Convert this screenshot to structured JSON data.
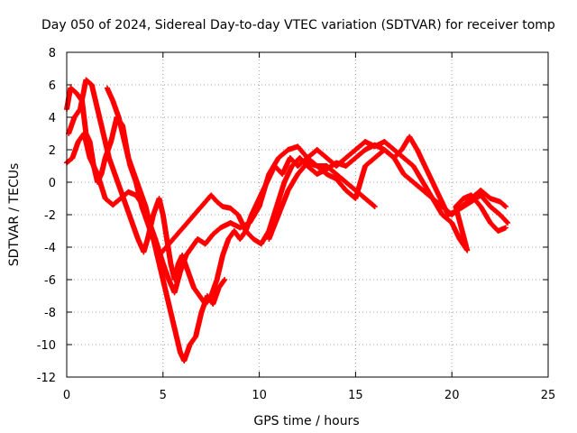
{
  "chart_data": {
    "type": "scatter",
    "title": "Day 050 of 2024, Sidereal Day-to-day VTEC variation (SDTVAR) for receiver tomp",
    "xlabel": "GPS time / hours",
    "ylabel": "SDTVAR / TECUs",
    "xlim": [
      0,
      25
    ],
    "ylim": [
      -12,
      8
    ],
    "xticks": [
      0,
      5,
      10,
      15,
      20,
      25
    ],
    "yticks": [
      -12,
      -10,
      -8,
      -6,
      -4,
      -2,
      0,
      2,
      4,
      6,
      8
    ],
    "grid": true,
    "marker": "+",
    "color": "#ff0000",
    "series": [
      {
        "points": [
          [
            0.0,
            1.2
          ],
          [
            0.3,
            1.5
          ],
          [
            0.6,
            2.5
          ],
          [
            0.9,
            3.0
          ],
          [
            1.2,
            1.5
          ],
          [
            1.6,
            0.5
          ],
          [
            2.0,
            -1.0
          ],
          [
            2.4,
            -1.4
          ],
          [
            2.8,
            -1.0
          ],
          [
            3.2,
            -0.6
          ],
          [
            3.6,
            -0.8
          ],
          [
            4.0,
            -1.5
          ],
          [
            4.3,
            -2.5
          ],
          [
            4.6,
            -3.5
          ],
          [
            5.0,
            -5.0
          ],
          [
            5.3,
            -6.0
          ],
          [
            5.6,
            -6.8
          ],
          [
            5.9,
            -5.5
          ],
          [
            6.2,
            -4.5
          ],
          [
            6.5,
            -4.0
          ],
          [
            6.8,
            -3.5
          ],
          [
            7.2,
            -3.8
          ],
          [
            7.6,
            -3.2
          ],
          [
            8.0,
            -2.8
          ],
          [
            8.5,
            -2.5
          ],
          [
            9.0,
            -2.8
          ],
          [
            9.5,
            -2.5
          ],
          [
            10.0,
            -1.5
          ],
          [
            10.5,
            0.5
          ],
          [
            11.0,
            1.5
          ],
          [
            11.5,
            2.0
          ],
          [
            12.0,
            2.2
          ],
          [
            12.5,
            1.5
          ],
          [
            13.0,
            1.0
          ],
          [
            13.5,
            1.0
          ],
          [
            14.0,
            0.5
          ],
          [
            14.5,
            0.0
          ],
          [
            15.0,
            -0.5
          ],
          [
            15.5,
            -1.0
          ],
          [
            16.0,
            -1.5
          ]
        ]
      },
      {
        "points": [
          [
            0.0,
            4.5
          ],
          [
            0.2,
            5.8
          ],
          [
            0.5,
            5.5
          ],
          [
            0.8,
            5.0
          ],
          [
            1.0,
            3.0
          ],
          [
            1.2,
            2.5
          ],
          [
            1.4,
            1.0
          ],
          [
            1.6,
            0.0
          ],
          [
            1.8,
            0.5
          ],
          [
            2.0,
            1.5
          ],
          [
            2.3,
            2.5
          ],
          [
            2.6,
            4.0
          ],
          [
            2.9,
            3.5
          ],
          [
            3.2,
            1.5
          ],
          [
            3.5,
            0.5
          ],
          [
            3.8,
            -0.5
          ],
          [
            4.1,
            -1.5
          ],
          [
            4.4,
            -3.0
          ],
          [
            4.7,
            -4.5
          ],
          [
            5.0,
            -6.0
          ],
          [
            5.3,
            -7.5
          ],
          [
            5.6,
            -9.0
          ],
          [
            5.9,
            -10.5
          ],
          [
            6.1,
            -11.0
          ],
          [
            6.4,
            -10.0
          ],
          [
            6.7,
            -9.5
          ],
          [
            7.0,
            -8.0
          ],
          [
            7.3,
            -7.0
          ],
          [
            7.6,
            -7.5
          ],
          [
            7.9,
            -6.5
          ],
          [
            8.2,
            -6.0
          ]
        ]
      },
      {
        "points": [
          [
            0.1,
            3.0
          ],
          [
            0.4,
            4.0
          ],
          [
            0.7,
            4.5
          ],
          [
            1.0,
            6.3
          ],
          [
            1.3,
            6.0
          ],
          [
            1.6,
            4.5
          ],
          [
            1.9,
            3.0
          ],
          [
            2.2,
            1.5
          ],
          [
            2.5,
            0.5
          ],
          [
            2.8,
            -0.5
          ],
          [
            3.1,
            -1.5
          ],
          [
            3.4,
            -2.5
          ],
          [
            3.7,
            -3.5
          ],
          [
            4.0,
            -4.3
          ],
          [
            4.2,
            -3.5
          ],
          [
            4.5,
            -2.0
          ],
          [
            4.8,
            -1.0
          ],
          [
            5.0,
            -2.0
          ],
          [
            5.2,
            -3.5
          ],
          [
            5.4,
            -5.0
          ],
          [
            5.6,
            -6.0
          ],
          [
            5.8,
            -5.0
          ],
          [
            6.0,
            -4.5
          ],
          [
            6.3,
            -5.5
          ],
          [
            6.6,
            -6.5
          ],
          [
            6.9,
            -7.0
          ],
          [
            7.2,
            -7.5
          ],
          [
            7.5,
            -7.0
          ],
          [
            7.8,
            -6.0
          ],
          [
            8.1,
            -4.5
          ],
          [
            8.4,
            -3.5
          ],
          [
            8.7,
            -3.0
          ],
          [
            9.0,
            -3.5
          ],
          [
            9.3,
            -3.0
          ],
          [
            9.6,
            -2.0
          ],
          [
            10.0,
            -1.0
          ],
          [
            10.4,
            0.0
          ],
          [
            10.8,
            1.0
          ],
          [
            11.2,
            0.5
          ],
          [
            11.6,
            1.5
          ],
          [
            12.0,
            1.0
          ],
          [
            12.5,
            1.5
          ],
          [
            13.0,
            2.0
          ],
          [
            13.5,
            1.5
          ],
          [
            14.0,
            1.0
          ],
          [
            14.5,
            1.5
          ],
          [
            15.0,
            2.0
          ],
          [
            15.5,
            2.5
          ],
          [
            16.0,
            2.2
          ],
          [
            16.5,
            2.5
          ],
          [
            17.0,
            2.0
          ],
          [
            17.5,
            1.5
          ],
          [
            18.0,
            1.0
          ],
          [
            18.5,
            0.0
          ],
          [
            19.0,
            -1.0
          ],
          [
            19.5,
            -1.5
          ],
          [
            20.0,
            -2.0
          ],
          [
            20.5,
            -1.5
          ],
          [
            21.0,
            -1.0
          ],
          [
            21.5,
            -0.5
          ],
          [
            22.0,
            -1.0
          ],
          [
            22.5,
            -1.2
          ],
          [
            22.8,
            -1.5
          ]
        ]
      },
      {
        "points": [
          [
            2.1,
            5.8
          ],
          [
            2.4,
            5.0
          ],
          [
            2.7,
            4.0
          ],
          [
            3.0,
            2.5
          ],
          [
            3.3,
            1.0
          ],
          [
            3.6,
            0.0
          ],
          [
            3.9,
            -1.5
          ],
          [
            4.2,
            -2.5
          ],
          [
            4.5,
            -3.5
          ],
          [
            4.8,
            -4.5
          ],
          [
            7.5,
            -0.8
          ],
          [
            7.8,
            -1.2
          ],
          [
            8.1,
            -1.5
          ],
          [
            8.5,
            -1.6
          ],
          [
            8.9,
            -2.0
          ],
          [
            9.3,
            -3.0
          ],
          [
            9.7,
            -3.5
          ],
          [
            10.1,
            -3.8
          ],
          [
            10.5,
            -3.0
          ],
          [
            10.9,
            -1.5
          ],
          [
            11.3,
            0.0
          ],
          [
            11.7,
            1.0
          ],
          [
            12.1,
            1.5
          ],
          [
            12.5,
            1.0
          ],
          [
            13.0,
            0.5
          ],
          [
            13.5,
            0.8
          ],
          [
            14.0,
            1.2
          ],
          [
            14.5,
            1.0
          ],
          [
            15.0,
            1.5
          ],
          [
            15.5,
            2.0
          ],
          [
            16.0,
            2.3
          ],
          [
            16.5,
            2.0
          ],
          [
            17.0,
            1.5
          ],
          [
            17.4,
            2.0
          ],
          [
            17.8,
            2.8
          ],
          [
            18.2,
            2.0
          ],
          [
            18.6,
            1.0
          ],
          [
            19.0,
            0.0
          ],
          [
            19.4,
            -1.0
          ],
          [
            19.8,
            -2.0
          ],
          [
            20.2,
            -1.8
          ],
          [
            20.6,
            -1.5
          ],
          [
            21.0,
            -1.2
          ],
          [
            21.5,
            -0.8
          ],
          [
            22.0,
            -1.5
          ],
          [
            22.5,
            -2.0
          ],
          [
            22.9,
            -2.5
          ]
        ]
      },
      {
        "points": [
          [
            10.5,
            -3.5
          ],
          [
            11.0,
            -2.0
          ],
          [
            11.5,
            -0.5
          ],
          [
            12.0,
            0.5
          ],
          [
            12.5,
            1.2
          ],
          [
            13.0,
            1.0
          ],
          [
            13.5,
            0.5
          ],
          [
            14.0,
            0.2
          ],
          [
            14.5,
            -0.5
          ],
          [
            15.0,
            -1.0
          ],
          [
            15.5,
            1.0
          ],
          [
            16.0,
            1.5
          ],
          [
            16.5,
            2.0
          ],
          [
            17.0,
            1.5
          ],
          [
            17.5,
            0.5
          ],
          [
            18.0,
            0.0
          ],
          [
            18.5,
            -0.5
          ],
          [
            19.0,
            -1.0
          ],
          [
            19.5,
            -2.0
          ],
          [
            20.0,
            -2.5
          ],
          [
            20.4,
            -3.5
          ],
          [
            20.8,
            -4.2
          ],
          [
            20.2,
            -1.5
          ],
          [
            20.6,
            -1.0
          ],
          [
            21.0,
            -0.8
          ],
          [
            21.5,
            -1.5
          ],
          [
            22.0,
            -2.5
          ],
          [
            22.4,
            -3.0
          ],
          [
            22.8,
            -2.8
          ]
        ]
      }
    ]
  }
}
